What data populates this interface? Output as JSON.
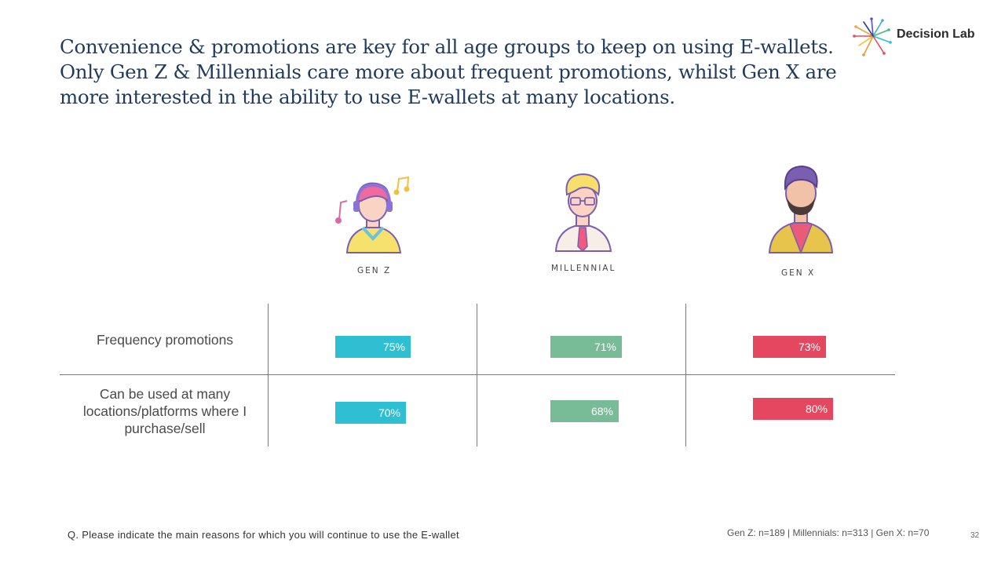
{
  "slide": {
    "title": "Convenience & promotions are key for all age groups to keep on using E-wallets. Only Gen Z & Millennials care more about frequent promotions, whilst Gen X are more interested in the ability to use E-wallets at many locations.",
    "logo_text": "Decision Lab",
    "footnote": "Q. Please indicate the main  reasons for which you will  continue to use the E-wallet",
    "sample_sizes": "Gen Z: n=189 | Millennials: n=313 | Gen X: n=70",
    "page_number": "32"
  },
  "personas": [
    {
      "label": "GEN Z",
      "icon": "gen-z-avatar-icon"
    },
    {
      "label": "MILLENNIAL",
      "icon": "millennial-avatar-icon"
    },
    {
      "label": "GEN X",
      "icon": "gen-x-avatar-icon"
    }
  ],
  "chart_data": {
    "type": "bar",
    "orientation": "horizontal",
    "categories": [
      "Frequency promotions",
      "Can be used at many locations/platforms where I purchase/sell"
    ],
    "series": [
      {
        "name": "GEN Z",
        "values": [
          75,
          70
        ],
        "labels": [
          "75%",
          "70%"
        ],
        "color": "#2fbfd3"
      },
      {
        "name": "MILLENNIAL",
        "values": [
          71,
          68
        ],
        "labels": [
          "71%",
          "68%"
        ],
        "color": "#78bb97"
      },
      {
        "name": "GEN X",
        "values": [
          73,
          80
        ],
        "labels": [
          "73%",
          "80%"
        ],
        "color": "#e4475f"
      }
    ],
    "unit": "%",
    "grid": false,
    "legend": "none"
  }
}
